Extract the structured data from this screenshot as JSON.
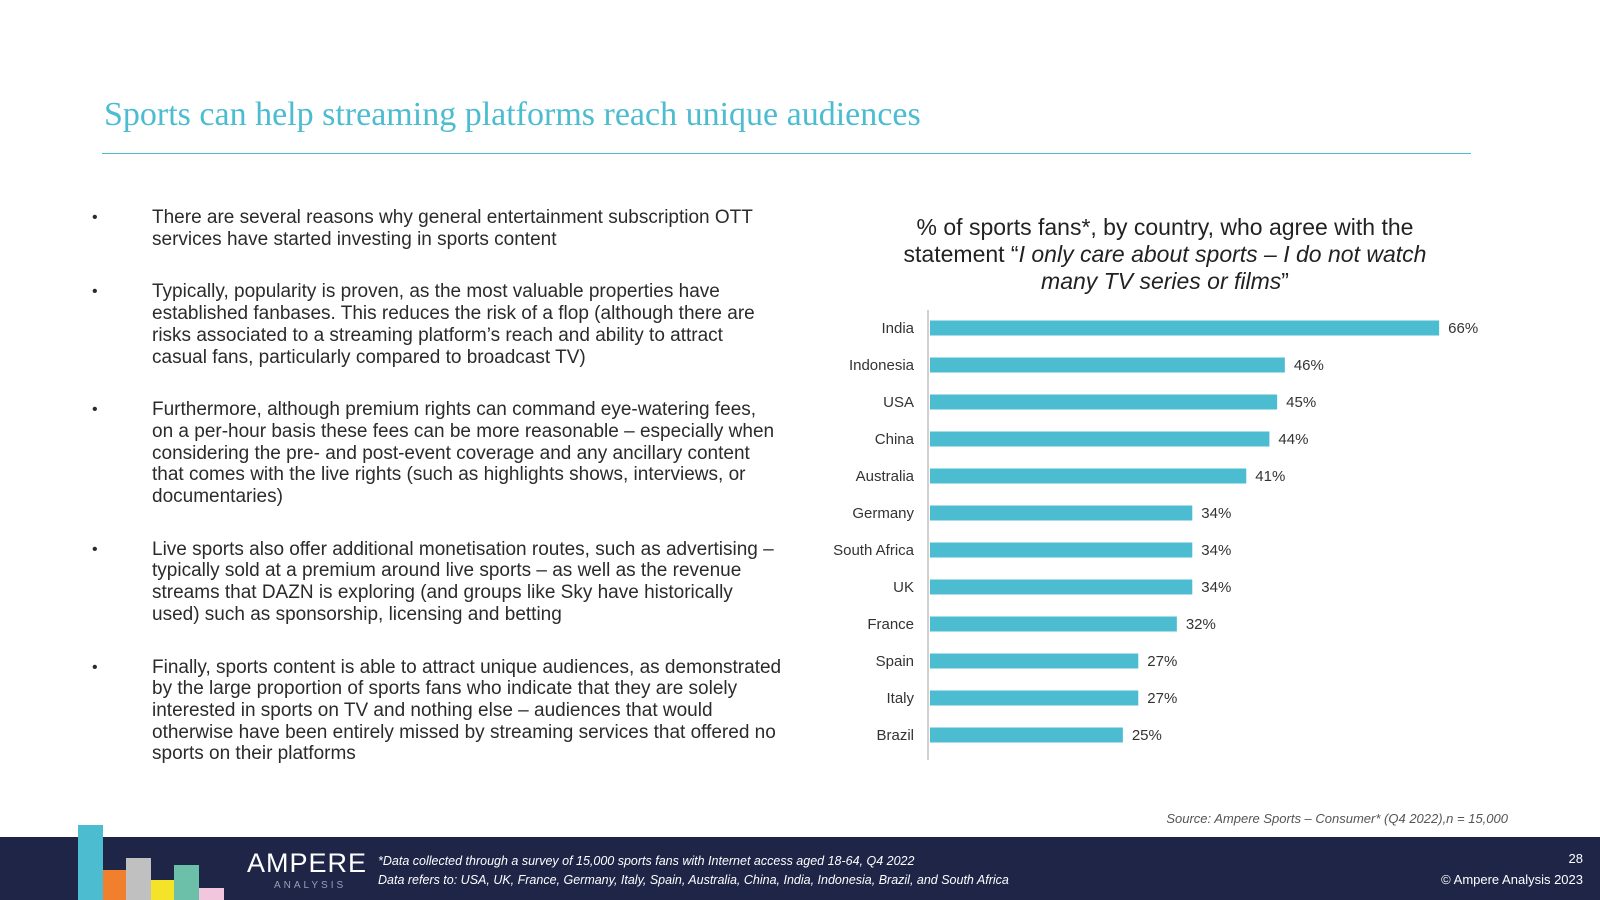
{
  "slide": {
    "title": "Sports can help streaming platforms reach unique audiences",
    "page_number": "28",
    "copyright": "© Ampere Analysis 2023"
  },
  "bullets": [
    "There are several reasons why general entertainment subscription OTT services have started investing in sports content",
    "Typically, popularity is proven, as the most valuable properties have established fanbases. This reduces the risk of a flop (although there are risks associated to a streaming platform’s reach and ability to attract casual fans, particularly compared to broadcast TV)",
    "Furthermore, although premium rights can command eye-watering fees, on a per-hour basis these fees can be more reasonable – especially when considering the pre- and post-event coverage and any ancillary content that comes with the live rights (such as highlights shows, interviews, or documentaries)",
    "Live sports also offer additional monetisation routes, such as advertising – typically sold at a premium around live sports – as well as the revenue streams that DAZN is exploring (and groups like Sky have historically used) such as sponsorship, licensing and betting",
    "Finally, sports content is able to attract unique audiences, as demonstrated by the large proportion of sports fans who indicate that they are solely interested in sports on TV and nothing else – audiences that would otherwise have been entirely missed by streaming services that offered no sports on their platforms"
  ],
  "bullet_glyph": "•",
  "chart_title": {
    "line1": "% of sports fans*, by country, who agree with the",
    "line2_prefix": "statement “",
    "line2_italic": "I only care about sports – I do not watch",
    "line3_italic": "many TV series or films",
    "line3_suffix": "”"
  },
  "chart_data": {
    "type": "bar",
    "orientation": "horizontal",
    "title": "% of sports fans*, by country, who agree with the statement “I only care about sports – I do not watch many TV series or films”",
    "categories": [
      "India",
      "Indonesia",
      "USA",
      "China",
      "Australia",
      "Germany",
      "South Africa",
      "UK",
      "France",
      "Spain",
      "Italy",
      "Brazil"
    ],
    "values": [
      66,
      46,
      45,
      44,
      41,
      34,
      34,
      34,
      32,
      27,
      27,
      25
    ],
    "value_labels": [
      "66%",
      "46%",
      "45%",
      "44%",
      "41%",
      "34%",
      "34%",
      "34%",
      "32%",
      "27%",
      "27%",
      "25%"
    ],
    "xlim": [
      0,
      70
    ],
    "unit": "%",
    "bar_color": "#4cbcd0",
    "grid": false
  },
  "source": "Source: Ampere Sports – Consumer* (Q4 2022),n = 15,000",
  "footer": {
    "logo": "AMPERE",
    "logo_sub": "ANALYSIS",
    "note1": "*Data collected through a survey of 15,000 sports fans with Internet access aged 18-64, Q4 2022",
    "note2": "Data refers to: USA, UK, France, Germany, Italy, Spain, Australia, China, India, Indonesia, Brazil, and South Africa"
  },
  "colors": {
    "accent": "#4cbcd0",
    "footer_bg": "#1e2547",
    "logo_blue": "#4cbcd0",
    "logo_orange": "#f07f2e",
    "logo_grey": "#c0c0c0",
    "logo_yellow": "#f5e32a",
    "logo_green": "#6cbfa8",
    "logo_pink": "#f2c6dc"
  }
}
